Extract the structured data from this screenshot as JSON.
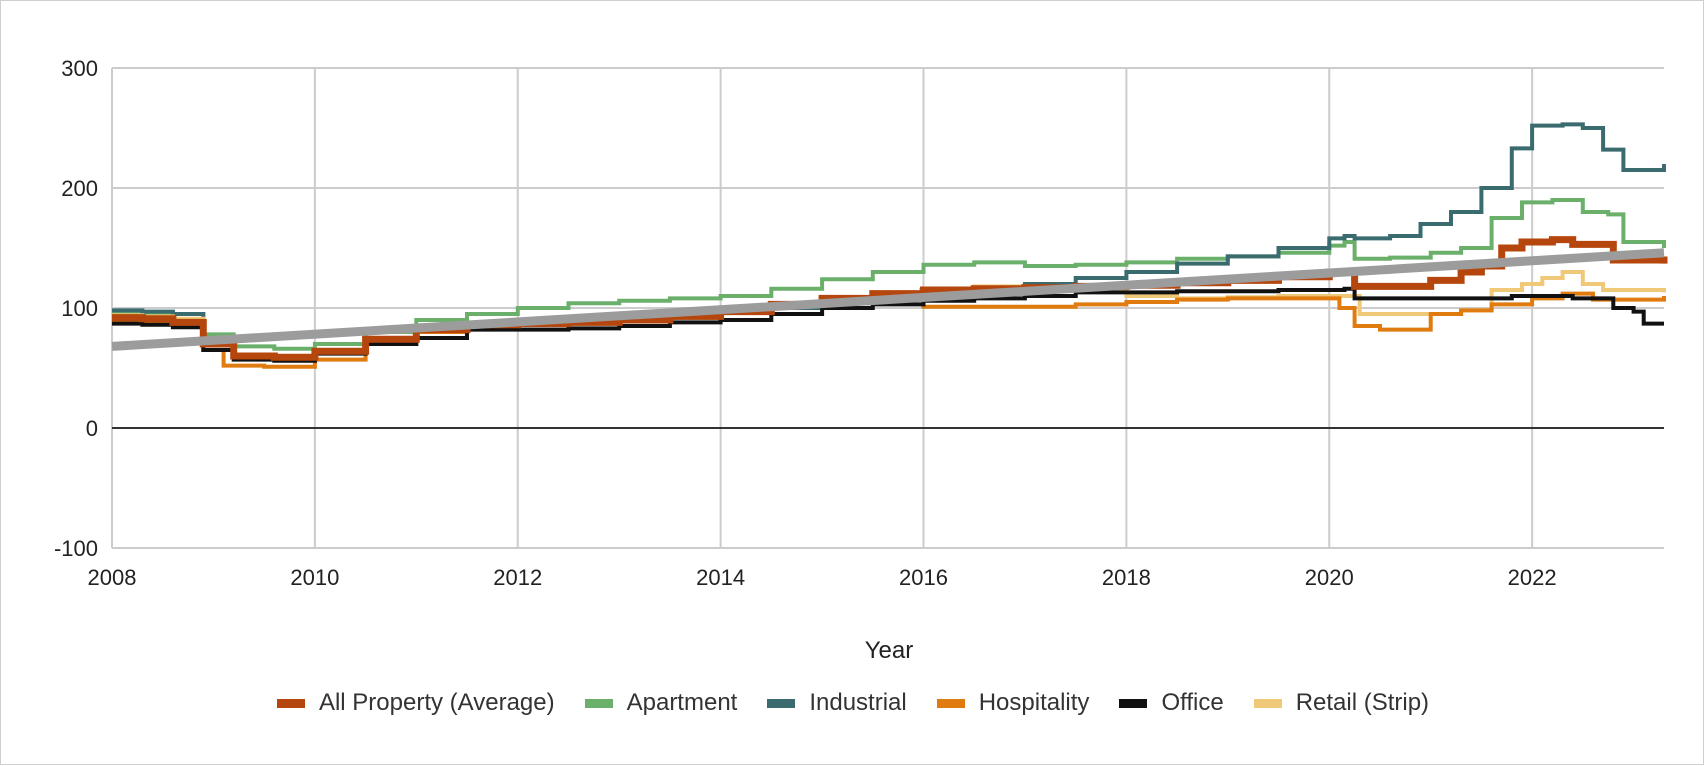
{
  "chart_data": {
    "type": "line",
    "title": "",
    "xlabel": "Year",
    "ylabel": "",
    "xlim": [
      2008,
      2023.3
    ],
    "ylim": [
      -100,
      300
    ],
    "x_ticks": [
      2008,
      2010,
      2012,
      2014,
      2016,
      2018,
      2020,
      2022
    ],
    "y_ticks": [
      -100,
      0,
      100,
      200,
      300
    ],
    "grid": true,
    "legend_position": "bottom",
    "series": [
      {
        "name": "Apartment",
        "color": "#6aaf6a",
        "x": [
          2008,
          2008.3,
          2008.6,
          2008.9,
          2009.2,
          2009.6,
          2010,
          2010.5,
          2011,
          2011.5,
          2012,
          2012.5,
          2013,
          2013.5,
          2014,
          2014.5,
          2015,
          2015.5,
          2016,
          2016.5,
          2017,
          2017.5,
          2018,
          2018.5,
          2019,
          2019.5,
          2020,
          2020.15,
          2020.25,
          2020.6,
          2021,
          2021.3,
          2021.6,
          2021.9,
          2022.2,
          2022.5,
          2022.75,
          2022.9,
          2023.3
        ],
        "y": [
          97,
          96,
          95,
          78,
          68,
          66,
          70,
          80,
          90,
          95,
          100,
          104,
          106,
          108,
          110,
          116,
          124,
          130,
          136,
          138,
          135,
          136,
          138,
          141,
          143,
          146,
          152,
          155,
          141,
          142,
          146,
          150,
          175,
          188,
          190,
          180,
          178,
          155,
          150
        ]
      },
      {
        "name": "Industrial",
        "color": "#3a6b6e",
        "x": [
          2008,
          2008.3,
          2008.6,
          2008.9,
          2009.2,
          2009.6,
          2010,
          2010.5,
          2011,
          2011.5,
          2012,
          2012.5,
          2013,
          2013.5,
          2014,
          2014.5,
          2015,
          2015.5,
          2016,
          2016.5,
          2017,
          2017.5,
          2018,
          2018.5,
          2019,
          2019.5,
          2020,
          2020.15,
          2020.25,
          2020.6,
          2020.9,
          2021.2,
          2021.5,
          2021.8,
          2022.0,
          2022.3,
          2022.5,
          2022.7,
          2022.9,
          2023.3
        ],
        "y": [
          98,
          97,
          95,
          72,
          60,
          59,
          64,
          73,
          80,
          85,
          87,
          88,
          90,
          92,
          96,
          100,
          104,
          108,
          112,
          115,
          120,
          125,
          130,
          137,
          143,
          150,
          158,
          160,
          158,
          160,
          170,
          180,
          200,
          233,
          252,
          253,
          250,
          232,
          215,
          220
        ]
      },
      {
        "name": "Retail (Strip)",
        "color": "#f0c978",
        "x": [
          2008,
          2008.3,
          2008.6,
          2008.9,
          2009.2,
          2009.6,
          2010,
          2010.5,
          2011,
          2011.5,
          2012,
          2012.5,
          2013,
          2013.5,
          2014,
          2014.5,
          2015,
          2015.5,
          2016,
          2016.5,
          2017,
          2017.5,
          2018,
          2018.5,
          2019,
          2019.5,
          2020,
          2020.15,
          2020.3,
          2020.6,
          2021,
          2021.3,
          2021.6,
          2021.9,
          2022.1,
          2022.3,
          2022.5,
          2022.7,
          2023.3
        ],
        "y": [
          94,
          93,
          91,
          72,
          60,
          58,
          63,
          74,
          82,
          86,
          88,
          89,
          92,
          96,
          99,
          103,
          107,
          111,
          114,
          118,
          116,
          114,
          110,
          108,
          109,
          110,
          110,
          110,
          95,
          95,
          95,
          98,
          115,
          120,
          125,
          130,
          120,
          115,
          113
        ]
      },
      {
        "name": "Hospitality",
        "color": "#e07b10",
        "x": [
          2008,
          2008.3,
          2008.6,
          2008.9,
          2009.1,
          2009.5,
          2010,
          2010.5,
          2011,
          2011.5,
          2012,
          2012.5,
          2013,
          2013.5,
          2014,
          2014.5,
          2015,
          2015.5,
          2015.98,
          2016.0,
          2016.5,
          2017,
          2017.5,
          2018,
          2018.5,
          2019,
          2019.5,
          2020,
          2020.1,
          2020.25,
          2020.5,
          2020.9,
          2021.0,
          2021.3,
          2021.6,
          2022,
          2022.3,
          2022.6,
          2023.3
        ],
        "y": [
          90,
          88,
          86,
          65,
          52,
          51,
          57,
          70,
          80,
          84,
          86,
          87,
          89,
          92,
          96,
          102,
          108,
          112,
          115,
          101,
          101,
          101,
          103,
          105,
          107,
          108,
          108,
          108,
          100,
          85,
          82,
          82,
          95,
          98,
          103,
          108,
          112,
          107,
          110
        ]
      },
      {
        "name": "Office",
        "color": "#111111",
        "x": [
          2008,
          2008.3,
          2008.6,
          2008.9,
          2009.2,
          2009.6,
          2010,
          2010.5,
          2011,
          2011.5,
          2012,
          2012.5,
          2013,
          2013.5,
          2014,
          2014.5,
          2015,
          2015.5,
          2016,
          2016.5,
          2017,
          2017.5,
          2018,
          2018.5,
          2019,
          2019.5,
          2020,
          2020.15,
          2020.25,
          2020.6,
          2021,
          2021.5,
          2021.8,
          2022.2,
          2022.4,
          2022.8,
          2023.0,
          2023.1,
          2023.3
        ],
        "y": [
          87,
          86,
          84,
          65,
          57,
          56,
          62,
          70,
          75,
          82,
          82,
          83,
          85,
          88,
          90,
          95,
          100,
          103,
          106,
          108,
          110,
          113,
          113,
          114,
          114,
          115,
          115,
          116,
          108,
          108,
          108,
          108,
          110,
          110,
          108,
          100,
          97,
          87,
          87
        ]
      },
      {
        "name": "All Property (Average)",
        "color": "#b5470e",
        "x": [
          2008,
          2008.3,
          2008.6,
          2008.9,
          2009.2,
          2009.6,
          2010,
          2010.5,
          2011,
          2011.5,
          2012,
          2012.5,
          2013,
          2013.5,
          2014,
          2014.5,
          2015,
          2015.5,
          2016,
          2016.5,
          2017,
          2017.5,
          2018,
          2018.5,
          2019,
          2019.5,
          2020,
          2020.15,
          2020.25,
          2020.6,
          2021,
          2021.3,
          2021.5,
          2021.7,
          2021.9,
          2022.2,
          2022.4,
          2022.8,
          2023.3
        ],
        "y": [
          92,
          91,
          88,
          70,
          60,
          59,
          64,
          74,
          82,
          86,
          87,
          88,
          90,
          93,
          97,
          103,
          108,
          112,
          115,
          116,
          117,
          118,
          119,
          121,
          123,
          126,
          130,
          130,
          118,
          118,
          123,
          130,
          135,
          150,
          155,
          157,
          153,
          140,
          137
        ]
      },
      {
        "name": "",
        "color": "#9c9c9c",
        "x": [
          2008,
          2023.3
        ],
        "y": [
          68,
          146
        ]
      }
    ]
  }
}
